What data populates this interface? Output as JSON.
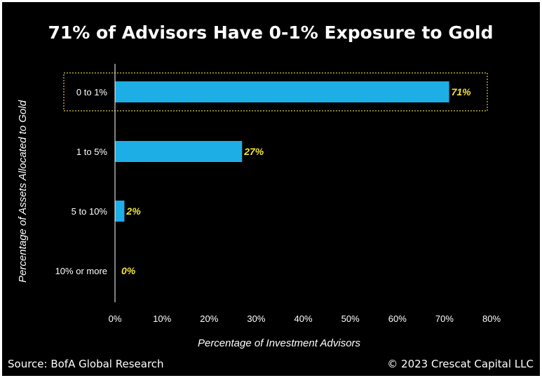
{
  "chart_data": {
    "type": "bar",
    "orientation": "horizontal",
    "title": "71% of Advisors Have 0-1% Exposure to Gold",
    "categories": [
      "0 to 1%",
      "1 to 5%",
      "5 to 10%",
      "10% or more"
    ],
    "values": [
      71,
      27,
      2,
      0
    ],
    "value_labels": [
      "71%",
      "27%",
      "2%",
      "0%"
    ],
    "xlabel": "Percentage of Investment Advisors",
    "ylabel": "Percentage of Assets Allocated to Gold",
    "xlim": [
      0,
      80
    ],
    "x_ticks": [
      "0%",
      "10%",
      "20%",
      "30%",
      "40%",
      "50%",
      "60%",
      "70%",
      "80%"
    ],
    "highlighted_category": "0 to 1%",
    "grid": false,
    "colors": {
      "background": "#000000",
      "bar": "#1eaee6",
      "value_label": "#f2e23a",
      "highlight_box": "#d8c84a",
      "text": "#ffffff"
    }
  },
  "footer": {
    "source": "Source: BofA Global Research",
    "copyright": "© 2023 Crescat Capital LLC"
  }
}
